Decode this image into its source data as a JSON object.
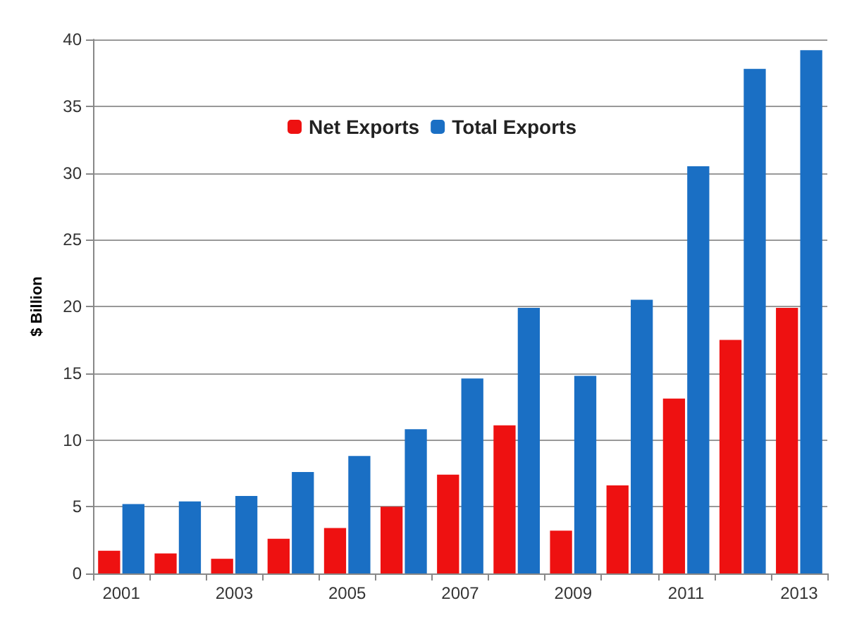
{
  "chart_data": {
    "type": "bar",
    "ylabel": "$ Billion",
    "categories": [
      "2001",
      null,
      "2003",
      null,
      "2005",
      null,
      "2007",
      null,
      "2009",
      null,
      "2011",
      null,
      "2013"
    ],
    "series": [
      {
        "name": "Net Exports",
        "color": "#ee1111",
        "values": [
          1.7,
          1.5,
          1.1,
          2.6,
          3.4,
          5.0,
          7.4,
          11.1,
          3.2,
          6.6,
          13.1,
          17.5,
          19.9
        ]
      },
      {
        "name": "Total Exports",
        "color": "#1a6fc4",
        "values": [
          5.2,
          5.4,
          5.8,
          7.6,
          8.8,
          10.8,
          14.6,
          19.9,
          14.8,
          20.5,
          30.5,
          37.8,
          39.2
        ]
      }
    ],
    "ylim": [
      0,
      40
    ],
    "yticks": [
      0,
      5,
      10,
      15,
      20,
      25,
      30,
      35,
      40
    ],
    "grid": "y",
    "legend": "top"
  }
}
